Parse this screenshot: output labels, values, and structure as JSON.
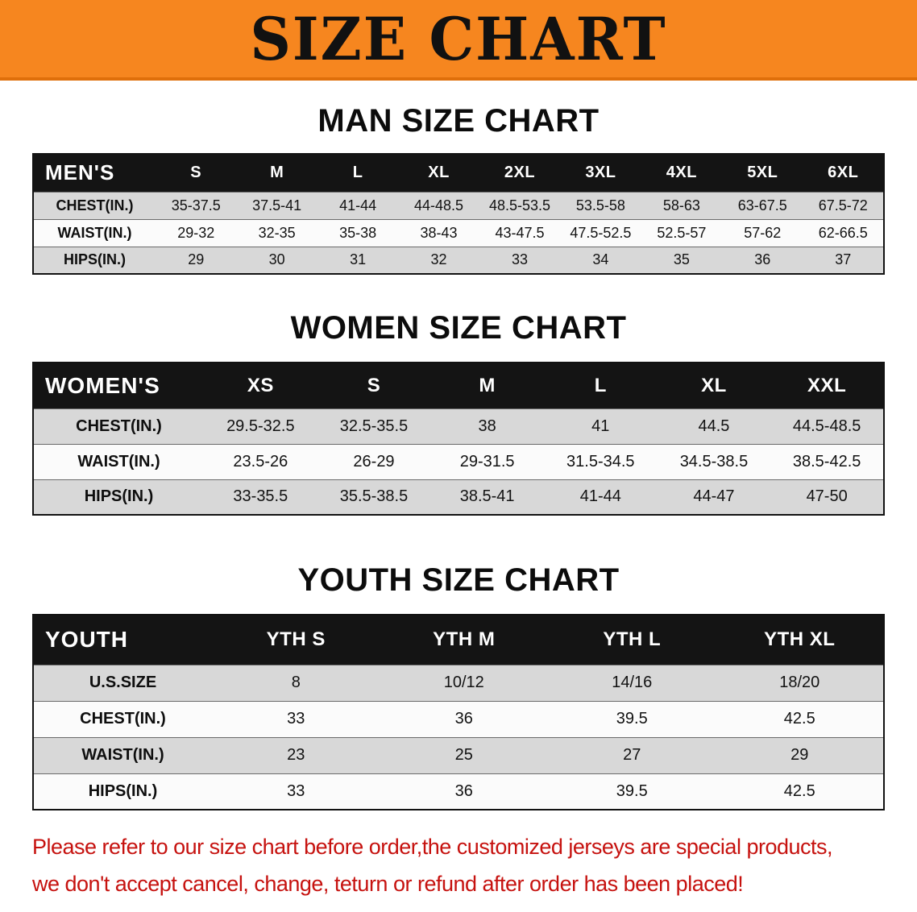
{
  "banner": {
    "title": "SIZE CHART"
  },
  "sections": [
    {
      "heading": "MAN SIZE CHART",
      "corner_label": "MEN'S",
      "columns": [
        "S",
        "M",
        "L",
        "XL",
        "2XL",
        "3XL",
        "4XL",
        "5XL",
        "6XL"
      ],
      "rows": [
        {
          "label": "CHEST(IN.)",
          "values": [
            "35-37.5",
            "37.5-41",
            "41-44",
            "44-48.5",
            "48.5-53.5",
            "53.5-58",
            "58-63",
            "63-67.5",
            "67.5-72"
          ]
        },
        {
          "label": "WAIST(IN.)",
          "values": [
            "29-32",
            "32-35",
            "35-38",
            "38-43",
            "43-47.5",
            "47.5-52.5",
            "52.5-57",
            "57-62",
            "62-66.5"
          ]
        },
        {
          "label": "HIPS(IN.)",
          "values": [
            "29",
            "30",
            "31",
            "32",
            "33",
            "34",
            "35",
            "36",
            "37"
          ]
        }
      ]
    },
    {
      "heading": "WOMEN SIZE CHART",
      "corner_label": "WOMEN'S",
      "columns": [
        "XS",
        "S",
        "M",
        "L",
        "XL",
        "XXL"
      ],
      "rows": [
        {
          "label": "CHEST(IN.)",
          "values": [
            "29.5-32.5",
            "32.5-35.5",
            "38",
            "41",
            "44.5",
            "44.5-48.5"
          ]
        },
        {
          "label": "WAIST(IN.)",
          "values": [
            "23.5-26",
            "26-29",
            "29-31.5",
            "31.5-34.5",
            "34.5-38.5",
            "38.5-42.5"
          ]
        },
        {
          "label": "HIPS(IN.)",
          "values": [
            "33-35.5",
            "35.5-38.5",
            "38.5-41",
            "41-44",
            "44-47",
            "47-50"
          ]
        }
      ]
    },
    {
      "heading": "YOUTH SIZE CHART",
      "corner_label": "YOUTH",
      "columns": [
        "YTH S",
        "YTH M",
        "YTH L",
        "YTH XL"
      ],
      "rows": [
        {
          "label": "U.S.SIZE",
          "values": [
            "8",
            "10/12",
            "14/16",
            "18/20"
          ]
        },
        {
          "label": "CHEST(IN.)",
          "values": [
            "33",
            "36",
            "39.5",
            "42.5"
          ]
        },
        {
          "label": "WAIST(IN.)",
          "values": [
            "23",
            "25",
            "27",
            "29"
          ]
        },
        {
          "label": "HIPS(IN.)",
          "values": [
            "33",
            "36",
            "39.5",
            "42.5"
          ]
        }
      ]
    }
  ],
  "disclaimer": {
    "line1": "Please refer to our size chart before order,the customized jerseys are special products,",
    "line2": "we don't accept cancel, change, teturn or refund after order has been placed!"
  },
  "colors": {
    "banner_bg": "#f6861f",
    "header_row_bg": "#141414",
    "header_text": "#ffffff",
    "row_stripe": "#d8d8d8",
    "row_alt": "#fbfbfb",
    "disclaimer_red": "#c6120f",
    "text_black": "#111111"
  }
}
